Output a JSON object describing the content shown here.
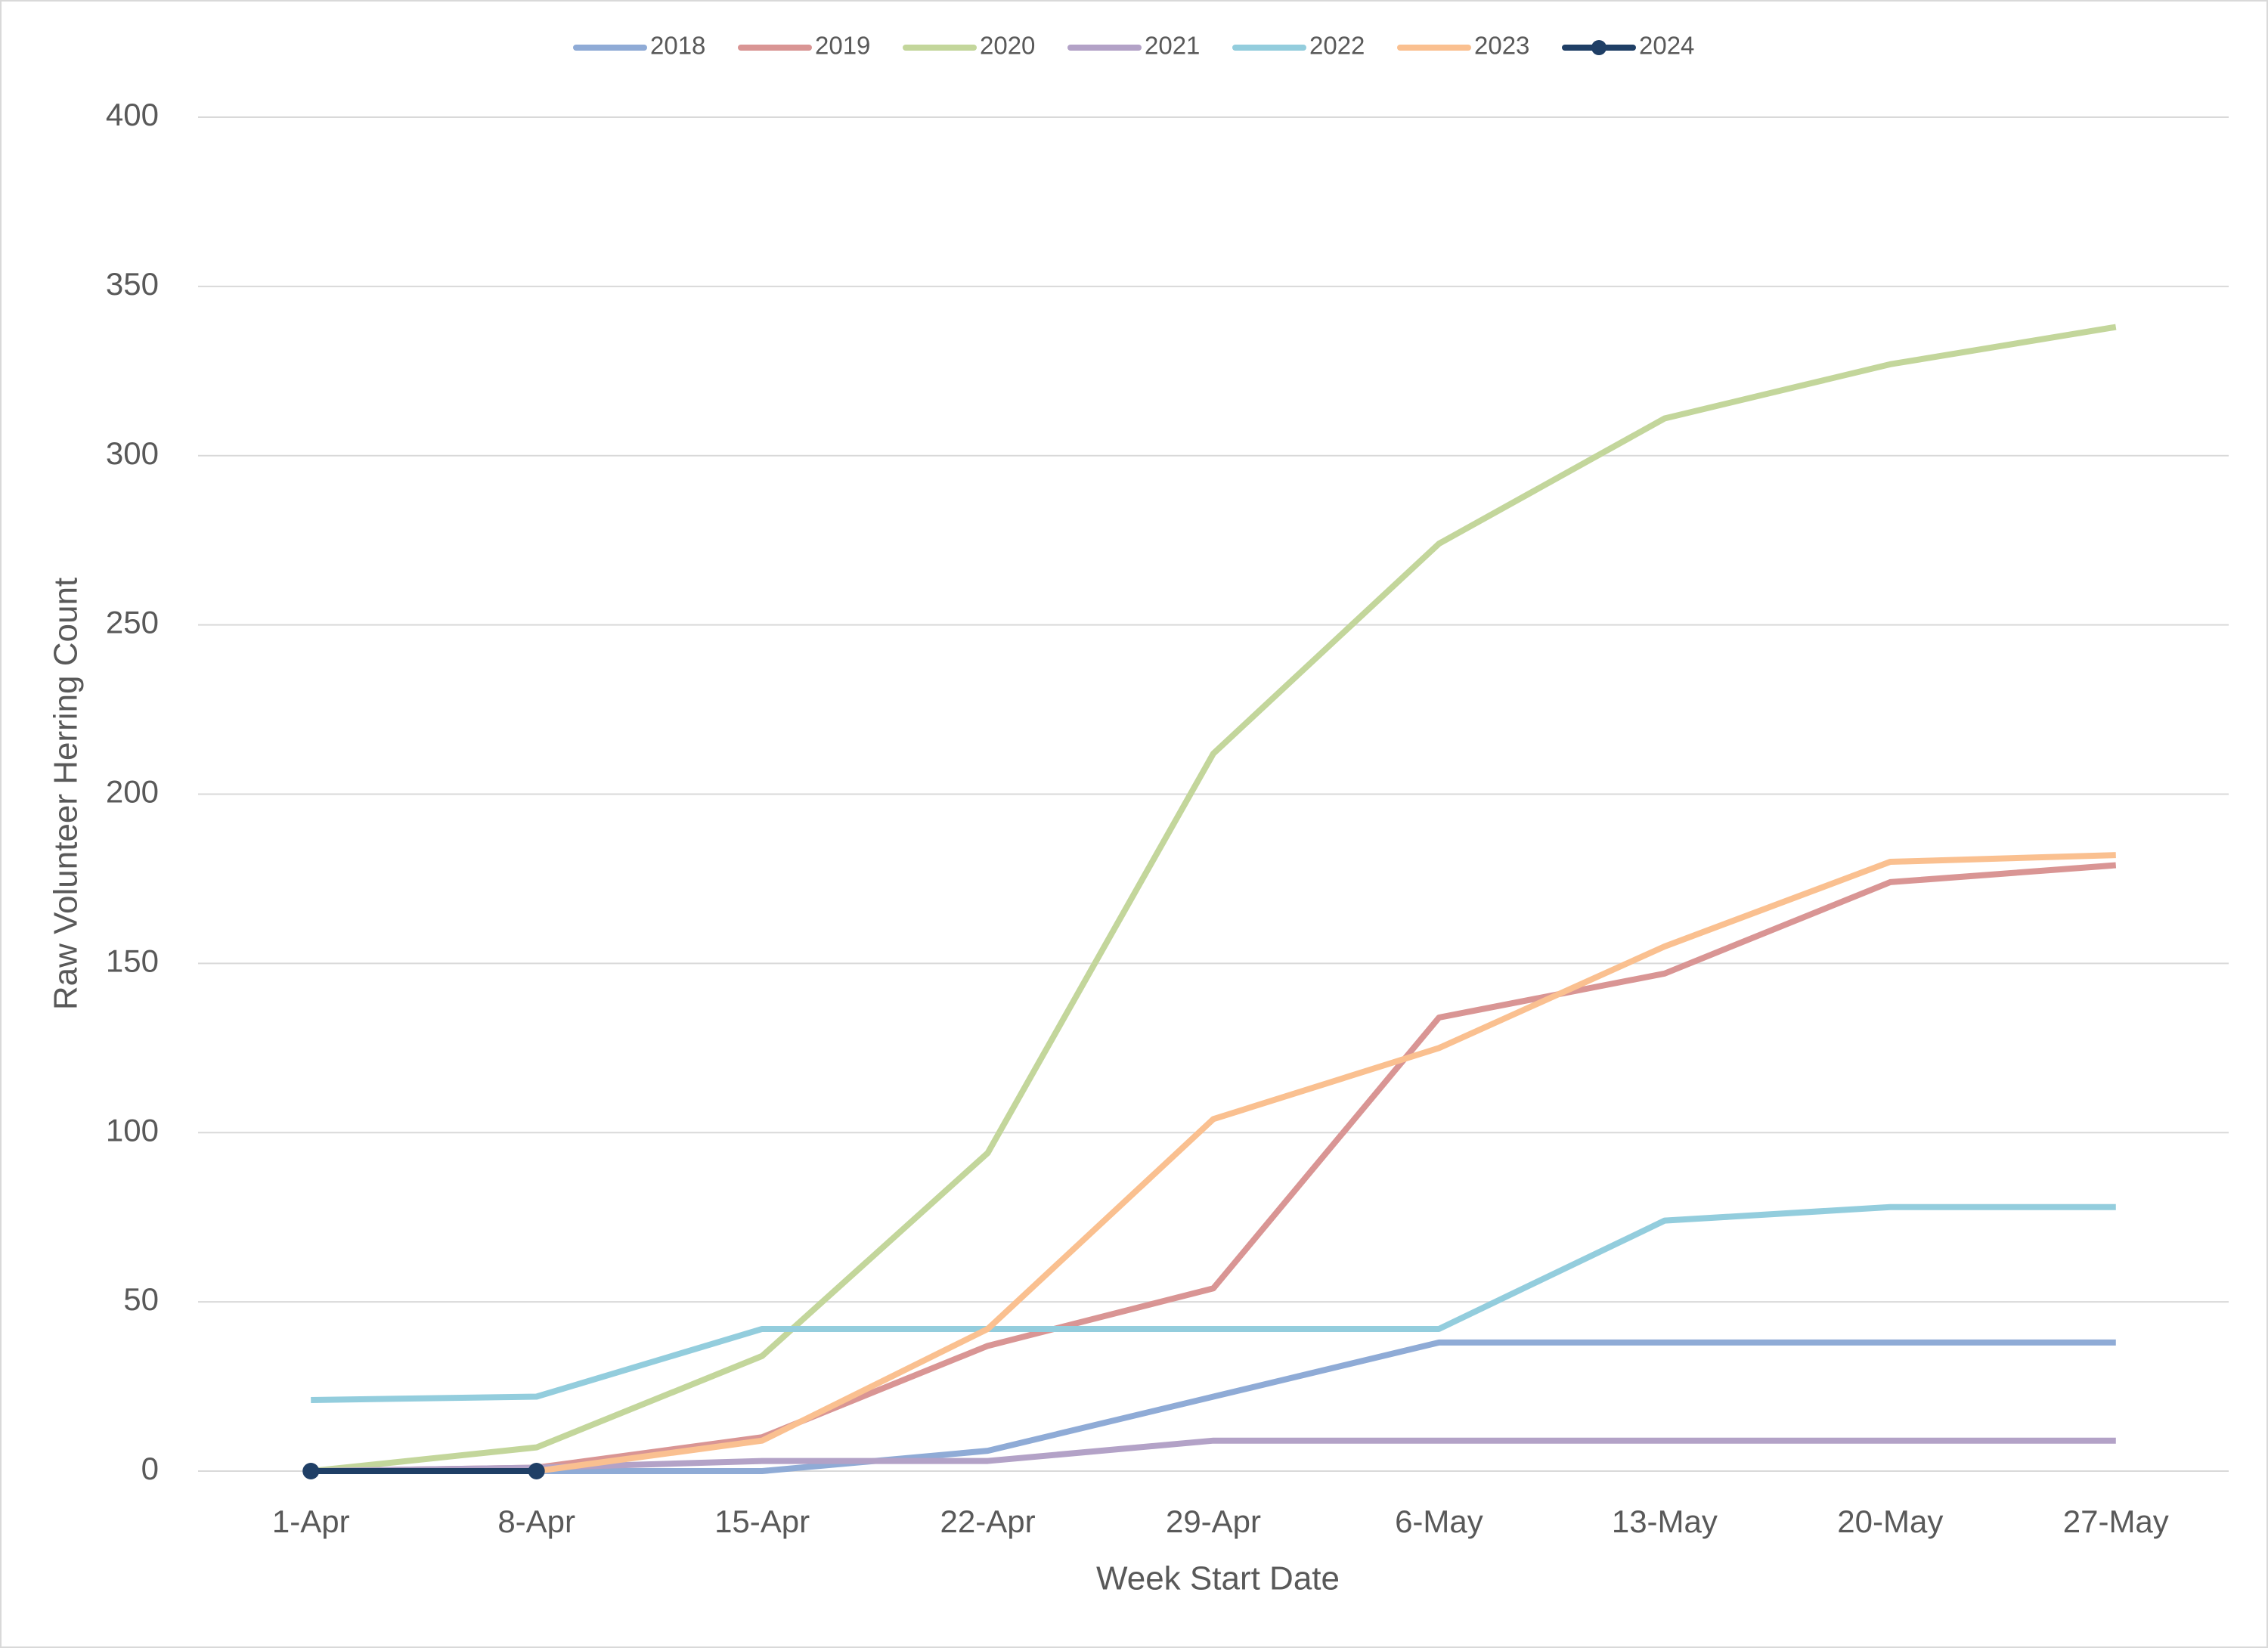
{
  "chart_data": {
    "type": "line",
    "x_label": "Week Start Date",
    "y_label": "Raw Volunteer  Herring Count",
    "categories": [
      "1-Apr",
      "8-Apr",
      "15-Apr",
      "22-Apr",
      "29-Apr",
      "6-May",
      "13-May",
      "20-May",
      "27-May"
    ],
    "series": [
      {
        "name": "2018",
        "color": "#8fabd6",
        "values": [
          0,
          0,
          0,
          6,
          22,
          38,
          38,
          38,
          38
        ]
      },
      {
        "name": "2019",
        "color": "#d99594",
        "values": [
          0,
          1,
          10,
          37,
          54,
          134,
          147,
          174,
          179
        ]
      },
      {
        "name": "2020",
        "color": "#c3d69b",
        "values": [
          0,
          7,
          34,
          94,
          212,
          274,
          311,
          327,
          338
        ]
      },
      {
        "name": "2021",
        "color": "#b3a2c7",
        "values": [
          0,
          1,
          3,
          3,
          9,
          9,
          9,
          9,
          9
        ]
      },
      {
        "name": "2022",
        "color": "#93cddd",
        "values": [
          21,
          22,
          42,
          42,
          42,
          42,
          74,
          78,
          78
        ]
      },
      {
        "name": "2023",
        "color": "#fac090",
        "values": [
          null,
          0,
          9,
          42,
          104,
          125,
          155,
          180,
          182
        ]
      },
      {
        "name": "2024",
        "color": "#1f3f66",
        "markers": true,
        "values": [
          0,
          0,
          null,
          null,
          null,
          null,
          null,
          null,
          null
        ]
      }
    ],
    "ylim": [
      0,
      400
    ],
    "yticks": [
      0,
      50,
      100,
      150,
      200,
      250,
      300,
      350,
      400
    ],
    "grid": true,
    "legend": "top"
  }
}
